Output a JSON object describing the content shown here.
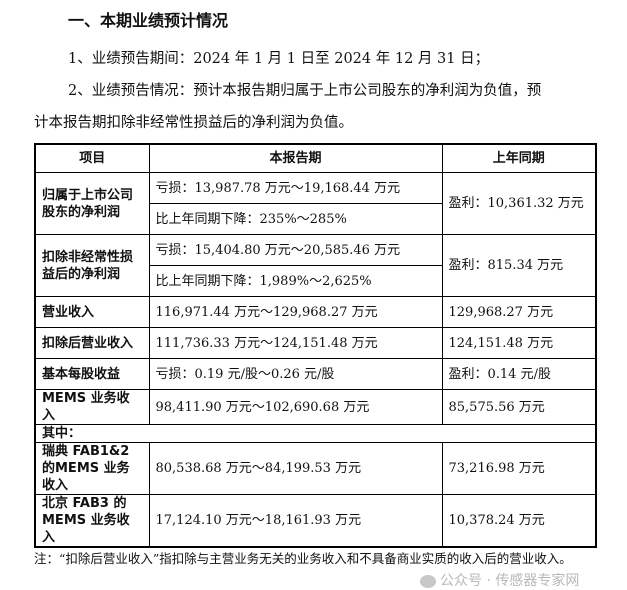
{
  "section_title": "一、本期业绩预计情况",
  "paragraphs": {
    "p1": "1、业绩预告期间：2024 年 1 月 1 日至 2024 年 12 月 31 日；",
    "p2a": "2、业绩预告情况：预计本报告期归属于上市公司股东的净利润为负值，预",
    "p2b": "计本报告期扣除非经常性损益后的净利润为负值。"
  },
  "table": {
    "headers": [
      "项目",
      "本报告期",
      "上年同期"
    ],
    "rows": [
      {
        "label": "归属于上市公司股东的净利润",
        "current": "亏损：13,987.78 万元～19,168.44 万元",
        "change": "比上年同期下降：235%～285%",
        "prior": "盈利：10,361.32 万元"
      },
      {
        "label": "扣除非经常性损益后的净利润",
        "current": "亏损：15,404.80 万元～20,585.46 万元",
        "change": "比上年同期下降：1,989%～2,625%",
        "prior": "盈利：815.34 万元"
      },
      {
        "label": "营业收入",
        "current": "116,971.44 万元～129,968.27 万元",
        "prior": "129,968.27 万元"
      },
      {
        "label": "扣除后营业收入",
        "current": "111,736.33 万元～124,151.48 万元",
        "prior": "124,151.48 万元"
      },
      {
        "label": "基本每股收益",
        "current": "亏损：0.19 元/股～0.26 元/股",
        "prior": "盈利：0.14 元/股"
      },
      {
        "label": "MEMS 业务收入",
        "current": "98,411.90 万元～102,690.68 万元",
        "prior": "85,575.56 万元"
      },
      {
        "label": "其中："
      },
      {
        "label": "瑞典 FAB1&2 的MEMS 业务收入",
        "current": "80,538.68 万元～84,199.53 万元",
        "prior": "73,216.98 万元"
      },
      {
        "label": "北京 FAB3 的MEMS 业务收入",
        "current": "17,124.10 万元～18,161.93 万元",
        "prior": "10,378.24 万元"
      }
    ]
  },
  "note": "注：“扣除后营业收入”指扣除与主营业务无关的业务收入和不具备商业实质的收入后的营业收入。",
  "watermark": "公众号 · 传感器专家网"
}
